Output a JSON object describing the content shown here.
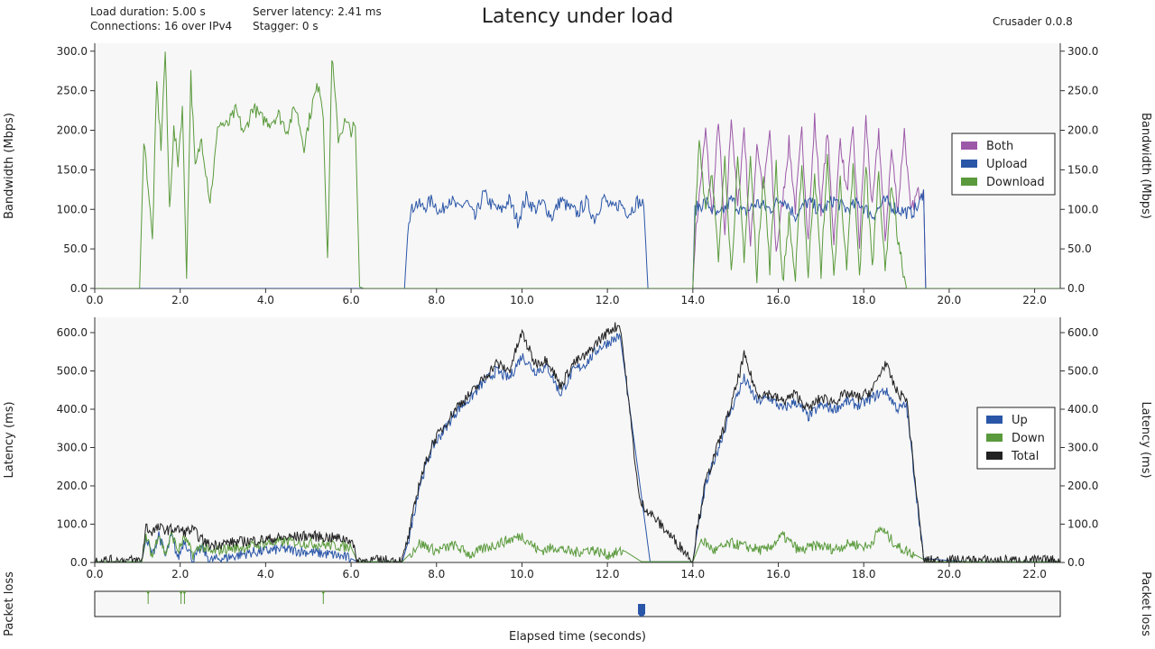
{
  "header": {
    "load_duration": "Load duration: 5.00 s",
    "connections": "Connections: 16 over IPv4",
    "server_latency": "Server latency: 2.41 ms",
    "stagger": "Stagger: 0 s",
    "title": "Latency under load",
    "version": "Crusader 0.0.8"
  },
  "colors": {
    "both": "#9b59a8",
    "upload": "#2a56a8",
    "download": "#5a9a3c",
    "total": "#222222",
    "plot_bg": "#f7f7f7"
  },
  "chart_data": [
    {
      "type": "line",
      "name": "bandwidth",
      "ylabel": "Bandwidth (Mbps)",
      "xlim": [
        0,
        22.6
      ],
      "ylim": [
        0,
        310
      ],
      "xticks": [
        0,
        2,
        4,
        6,
        8,
        10,
        12,
        14,
        16,
        18,
        20,
        22
      ],
      "yticks": [
        0,
        50,
        100,
        150,
        200,
        250,
        300
      ],
      "grid": false,
      "legend_position": "right",
      "legend": [
        "Both",
        "Upload",
        "Download"
      ],
      "series": [
        {
          "name": "Both",
          "color_key": "both",
          "x": [
            0,
            14.0,
            14.05,
            14.3,
            14.45,
            14.6,
            14.75,
            14.9,
            15.05,
            15.2,
            15.35,
            15.5,
            15.65,
            15.8,
            15.95,
            16.1,
            16.25,
            16.4,
            16.55,
            16.7,
            16.85,
            17.0,
            17.15,
            17.3,
            17.45,
            17.6,
            17.75,
            17.9,
            18.05,
            18.2,
            18.35,
            18.5,
            18.65,
            18.8,
            18.95,
            19.1,
            19.25,
            19.4,
            19.45,
            22.6
          ],
          "y": [
            0,
            0,
            60,
            200,
            90,
            215,
            60,
            220,
            100,
            205,
            50,
            185,
            120,
            200,
            45,
            110,
            185,
            100,
            200,
            60,
            215,
            100,
            200,
            60,
            190,
            120,
            200,
            55,
            215,
            100,
            200,
            60,
            175,
            100,
            200,
            95,
            120,
            125,
            0,
            0
          ]
        },
        {
          "name": "Upload",
          "color_key": "upload",
          "x": [
            0,
            7.25,
            7.35,
            7.5,
            7.7,
            7.9,
            8.1,
            8.3,
            8.5,
            8.7,
            8.9,
            9.1,
            9.3,
            9.5,
            9.7,
            9.9,
            10.1,
            10.3,
            10.5,
            10.7,
            10.9,
            11.1,
            11.3,
            11.5,
            11.7,
            11.9,
            12.1,
            12.3,
            12.5,
            12.7,
            12.85,
            12.95,
            14.0,
            14.05,
            14.3,
            14.6,
            14.9,
            15.2,
            15.5,
            15.8,
            16.1,
            16.4,
            16.7,
            17.0,
            17.3,
            17.6,
            17.9,
            18.2,
            18.5,
            18.8,
            19.1,
            19.3,
            19.4,
            19.45,
            22.6
          ],
          "y": [
            0,
            0,
            90,
            108,
            102,
            112,
            95,
            115,
            100,
            110,
            88,
            120,
            105,
            98,
            112,
            85,
            115,
            100,
            108,
            90,
            112,
            102,
            95,
            110,
            88,
            115,
            100,
            108,
            95,
            110,
            105,
            0,
            0,
            100,
            110,
            90,
            112,
            95,
            108,
            100,
            115,
            92,
            110,
            98,
            112,
            100,
            108,
            92,
            110,
            100,
            95,
            105,
            125,
            0,
            0
          ]
        },
        {
          "name": "Download",
          "color_key": "download",
          "x": [
            0,
            1.05,
            1.15,
            1.25,
            1.35,
            1.45,
            1.55,
            1.65,
            1.75,
            1.85,
            1.95,
            2.05,
            2.15,
            2.25,
            2.35,
            2.5,
            2.7,
            2.9,
            3.1,
            3.3,
            3.5,
            3.7,
            3.9,
            4.1,
            4.3,
            4.5,
            4.7,
            4.9,
            5.1,
            5.25,
            5.35,
            5.45,
            5.55,
            5.7,
            5.85,
            6.0,
            6.1,
            6.2,
            6.3,
            14.0,
            14.05,
            14.15,
            14.3,
            14.45,
            14.6,
            14.75,
            14.9,
            15.05,
            15.2,
            15.35,
            15.5,
            15.65,
            15.8,
            15.95,
            16.1,
            16.25,
            16.4,
            16.55,
            16.7,
            16.85,
            17.0,
            17.15,
            17.3,
            17.45,
            17.6,
            17.75,
            17.9,
            18.05,
            18.2,
            18.35,
            18.5,
            18.65,
            18.8,
            18.95,
            19.0,
            22.6
          ],
          "y": [
            0,
            0,
            190,
            130,
            60,
            260,
            180,
            300,
            100,
            200,
            160,
            230,
            20,
            270,
            150,
            190,
            110,
            210,
            205,
            225,
            195,
            230,
            215,
            210,
            220,
            200,
            230,
            180,
            235,
            260,
            220,
            30,
            295,
            190,
            210,
            200,
            205,
            2,
            0,
            0,
            80,
            190,
            100,
            150,
            30,
            170,
            20,
            160,
            40,
            165,
            15,
            150,
            25,
            160,
            5,
            90,
            10,
            160,
            15,
            150,
            20,
            165,
            10,
            140,
            20,
            155,
            15,
            160,
            25,
            150,
            20,
            135,
            60,
            15,
            0,
            0
          ]
        }
      ]
    },
    {
      "type": "line",
      "name": "latency",
      "ylabel": "Latency (ms)",
      "xlim": [
        0,
        22.6
      ],
      "ylim": [
        0,
        640
      ],
      "xticks": [
        0,
        2,
        4,
        6,
        8,
        10,
        12,
        14,
        16,
        18,
        20,
        22
      ],
      "yticks": [
        0,
        100,
        200,
        300,
        400,
        500,
        600
      ],
      "grid": false,
      "legend_position": "right",
      "legend": [
        "Up",
        "Down",
        "Total"
      ],
      "series": [
        {
          "name": "Up",
          "color_key": "upload",
          "x": [
            0,
            1.1,
            1.2,
            1.35,
            1.5,
            1.65,
            1.8,
            1.95,
            2.1,
            2.3,
            2.5,
            2.7,
            2.9,
            3.2,
            3.6,
            4.0,
            4.4,
            4.8,
            5.2,
            5.6,
            6.0,
            6.15,
            7.2,
            7.35,
            7.6,
            7.9,
            8.2,
            8.5,
            8.8,
            9.1,
            9.4,
            9.7,
            10.0,
            10.3,
            10.6,
            10.9,
            11.2,
            11.5,
            11.8,
            12.1,
            12.3,
            13.0,
            14.0,
            14.1,
            14.3,
            14.6,
            14.9,
            15.2,
            15.5,
            15.8,
            16.1,
            16.4,
            16.7,
            17.0,
            17.3,
            17.6,
            17.9,
            18.2,
            18.5,
            18.8,
            19.0,
            19.4,
            20.4,
            22.6
          ],
          "y": [
            2,
            2,
            60,
            20,
            75,
            15,
            70,
            10,
            60,
            5,
            40,
            5,
            10,
            15,
            25,
            30,
            35,
            30,
            25,
            20,
            10,
            2,
            2,
            60,
            200,
            300,
            350,
            400,
            430,
            470,
            500,
            480,
            540,
            500,
            510,
            440,
            500,
            520,
            560,
            580,
            590,
            2,
            2,
            80,
            200,
            300,
            400,
            480,
            420,
            430,
            400,
            420,
            380,
            410,
            400,
            420,
            410,
            430,
            450,
            400,
            410,
            10,
            2,
            2
          ]
        },
        {
          "name": "Down",
          "color_key": "download",
          "x": [
            0,
            1.1,
            1.2,
            1.35,
            1.5,
            1.65,
            1.8,
            1.95,
            2.1,
            2.3,
            2.5,
            2.7,
            3.0,
            3.5,
            4.0,
            4.5,
            5.0,
            5.5,
            6.0,
            6.15,
            7.2,
            7.4,
            7.6,
            8.0,
            8.4,
            8.8,
            9.2,
            9.6,
            10.0,
            10.4,
            10.8,
            11.2,
            11.6,
            12.0,
            12.4,
            12.8,
            14.0,
            14.2,
            14.5,
            14.9,
            15.3,
            15.7,
            16.1,
            16.5,
            16.9,
            17.3,
            17.7,
            18.1,
            18.4,
            18.8,
            19.2,
            19.5,
            20.4,
            22.6
          ],
          "y": [
            2,
            2,
            70,
            15,
            80,
            20,
            75,
            30,
            65,
            20,
            45,
            25,
            35,
            40,
            50,
            55,
            50,
            45,
            40,
            2,
            2,
            25,
            50,
            30,
            45,
            20,
            40,
            55,
            70,
            30,
            40,
            25,
            35,
            20,
            30,
            2,
            2,
            60,
            30,
            50,
            40,
            30,
            70,
            30,
            45,
            35,
            50,
            40,
            90,
            40,
            20,
            2,
            2,
            2
          ]
        },
        {
          "name": "Total",
          "color_key": "total",
          "x": [
            0,
            1.1,
            1.2,
            1.3,
            1.5,
            1.7,
            1.9,
            2.1,
            2.3,
            2.5,
            2.7,
            3.0,
            3.5,
            4.0,
            4.5,
            5.0,
            5.5,
            6.0,
            6.15,
            7.2,
            7.35,
            7.6,
            7.9,
            8.2,
            8.5,
            8.8,
            9.1,
            9.4,
            9.7,
            10.0,
            10.3,
            10.6,
            10.9,
            11.2,
            11.5,
            11.8,
            12.1,
            12.3,
            12.75,
            14.0,
            14.1,
            14.3,
            14.6,
            14.9,
            15.2,
            15.5,
            15.8,
            16.1,
            16.4,
            16.7,
            17.0,
            17.3,
            17.6,
            17.9,
            18.2,
            18.5,
            18.8,
            19.0,
            19.4,
            20.4,
            22.6
          ],
          "y": [
            5,
            5,
            95,
            80,
            90,
            85,
            88,
            80,
            85,
            60,
            45,
            50,
            55,
            60,
            65,
            70,
            65,
            60,
            5,
            5,
            70,
            210,
            310,
            360,
            410,
            440,
            480,
            520,
            500,
            600,
            520,
            530,
            460,
            520,
            540,
            580,
            610,
            620,
            160,
            5,
            90,
            210,
            310,
            410,
            540,
            440,
            440,
            420,
            440,
            400,
            430,
            420,
            440,
            430,
            450,
            520,
            440,
            430,
            5,
            5,
            5
          ]
        }
      ]
    },
    {
      "type": "scatter",
      "name": "packet_loss",
      "ylabel": "Packet loss",
      "xlim": [
        0,
        22.6
      ],
      "series": [
        {
          "name": "Down",
          "color_key": "download",
          "x": [
            1.25,
            2.02,
            2.1,
            5.35
          ]
        },
        {
          "name": "Up",
          "color_key": "upload",
          "x": [
            12.8
          ]
        }
      ]
    }
  ],
  "xlabel": "Elapsed time (seconds)"
}
